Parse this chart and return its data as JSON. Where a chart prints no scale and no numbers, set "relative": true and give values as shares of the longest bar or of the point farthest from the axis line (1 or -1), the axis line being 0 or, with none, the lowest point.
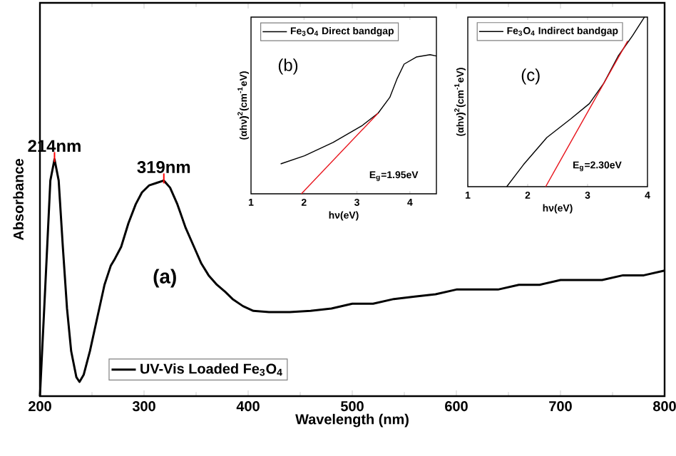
{
  "chart_data": [
    {
      "type": "line",
      "xlabel": "Wavelength (nm)",
      "ylabel": "Absorbance",
      "relative": true,
      "xlim": [
        200,
        800
      ],
      "xticks": [
        200,
        300,
        400,
        500,
        600,
        700,
        800
      ],
      "legend": "bottom left",
      "annotations": [
        {
          "text": "214nm",
          "x": 214,
          "y": 1.0
        },
        {
          "text": "319nm",
          "x": 319,
          "y": 0.91
        },
        "(a)"
      ],
      "series": [
        {
          "name": "UV-Vis Loaded Fe$_{3}$O$_{4}$",
          "color": "#000000",
          "x": [
            200,
            205,
            210,
            214,
            218,
            222,
            226,
            230,
            235,
            238,
            242,
            248,
            255,
            262,
            268,
            272,
            278,
            285,
            292,
            298,
            305,
            312,
            319,
            325,
            332,
            340,
            348,
            355,
            362,
            370,
            378,
            385,
            395,
            405,
            420,
            440,
            460,
            480,
            500,
            520,
            540,
            560,
            580,
            600,
            620,
            640,
            660,
            680,
            700,
            720,
            740,
            760,
            780,
            800
          ],
          "values": [
            0,
            0.45,
            0.91,
            1.0,
            0.91,
            0.63,
            0.37,
            0.19,
            0.08,
            0.06,
            0.09,
            0.19,
            0.33,
            0.47,
            0.55,
            0.58,
            0.63,
            0.73,
            0.81,
            0.86,
            0.89,
            0.9,
            0.91,
            0.88,
            0.81,
            0.71,
            0.63,
            0.56,
            0.51,
            0.47,
            0.44,
            0.41,
            0.38,
            0.36,
            0.355,
            0.355,
            0.36,
            0.37,
            0.39,
            0.39,
            0.41,
            0.42,
            0.43,
            0.45,
            0.45,
            0.45,
            0.47,
            0.47,
            0.49,
            0.49,
            0.49,
            0.51,
            0.51,
            0.53
          ]
        }
      ]
    },
    {
      "type": "line",
      "xlabel": "hν(eV)",
      "ylabel": "(αhν)$^{2}$(cm$^{-1}$eV)",
      "relative": true,
      "xlim": [
        1,
        4.5
      ],
      "xticks": [
        1,
        2,
        3,
        4
      ],
      "legend": "top left",
      "annotations": [
        "(b)",
        "E$_{g}$=1.95eV"
      ],
      "series": [
        {
          "name": "Fe$_{3}$O$_{4}$ Direct bandgap",
          "color": "#000000",
          "x": [
            1.56,
            2.01,
            2.55,
            3.09,
            3.4,
            3.62,
            3.76,
            3.89,
            4.12,
            4.38,
            4.5
          ],
          "values": [
            0.215,
            0.273,
            0.369,
            0.488,
            0.58,
            0.693,
            0.829,
            0.932,
            0.983,
            1.0,
            0.99
          ]
        },
        {
          "color": "#e8141c",
          "x": [
            3.4,
            1.95
          ],
          "values": [
            0.58,
            0
          ]
        }
      ]
    },
    {
      "type": "line",
      "xlabel": "hν(eV)",
      "ylabel": "(αhν)$^{2}$(cm$^{-1}$eV)",
      "relative": true,
      "xlim": [
        1,
        4
      ],
      "xticks": [
        1,
        2,
        3,
        4
      ],
      "legend": "top left",
      "annotations": [
        "(c)",
        "E$_{g}$=2.30eV"
      ],
      "series": [
        {
          "name": "Fe$_{3}$O$_{4}$ Indirect bandgap",
          "color": "#000000",
          "x": [
            1.65,
            1.93,
            2.32,
            2.72,
            3.03,
            3.27,
            3.51,
            3.75,
            3.95
          ],
          "values": [
            0,
            0.13,
            0.29,
            0.4,
            0.49,
            0.61,
            0.77,
            0.89,
            1.0
          ]
        },
        {
          "color": "#e8141c",
          "x": [
            3.67,
            2.3
          ],
          "values": [
            0.86,
            0
          ]
        }
      ]
    }
  ]
}
